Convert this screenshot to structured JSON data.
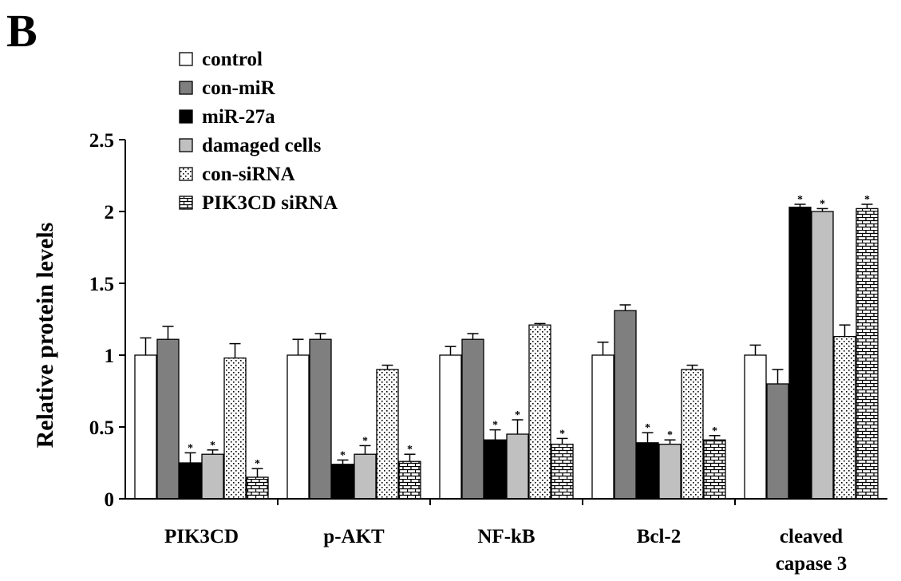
{
  "panel_label": "B",
  "chart_data": {
    "type": "bar",
    "title": "",
    "xlabel": "",
    "ylabel": "Relative protein levels",
    "ylim": [
      0,
      2.5
    ],
    "yticks": [
      "0",
      "0.5",
      "1",
      "1.5",
      "2",
      "2.5"
    ],
    "categories": [
      [
        "PIK3CD"
      ],
      [
        "p-AKT"
      ],
      [
        "NF-kB"
      ],
      [
        "Bcl-2"
      ],
      [
        "cleaved",
        "capase 3"
      ]
    ],
    "legend_position": "top-left",
    "grid": false,
    "series": [
      {
        "name": "control",
        "fill": "white",
        "values": [
          1.0,
          1.0,
          1.0,
          1.0,
          1.0
        ],
        "errors": [
          0.12,
          0.11,
          0.06,
          0.09,
          0.07
        ],
        "sig": [
          false,
          false,
          false,
          false,
          false
        ]
      },
      {
        "name": "con-miR",
        "fill": "darkgray",
        "values": [
          1.11,
          1.11,
          1.11,
          1.31,
          0.8
        ],
        "errors": [
          0.09,
          0.04,
          0.04,
          0.04,
          0.1
        ],
        "sig": [
          false,
          false,
          false,
          false,
          false
        ]
      },
      {
        "name": "miR-27a",
        "fill": "black",
        "values": [
          0.25,
          0.24,
          0.41,
          0.39,
          2.03
        ],
        "errors": [
          0.07,
          0.03,
          0.07,
          0.07,
          0.02
        ],
        "sig": [
          true,
          true,
          true,
          true,
          true
        ]
      },
      {
        "name": "damaged cells",
        "fill": "lightgray",
        "values": [
          0.31,
          0.31,
          0.45,
          0.38,
          2.0
        ],
        "errors": [
          0.03,
          0.06,
          0.1,
          0.03,
          0.02
        ],
        "sig": [
          true,
          true,
          true,
          true,
          true
        ]
      },
      {
        "name": "con-siRNA",
        "fill": "dots",
        "values": [
          0.98,
          0.9,
          1.21,
          0.9,
          1.13
        ],
        "errors": [
          0.1,
          0.03,
          0.01,
          0.03,
          0.08
        ],
        "sig": [
          false,
          false,
          false,
          false,
          false
        ]
      },
      {
        "name": "PIK3CD siRNA",
        "fill": "bricks",
        "values": [
          0.15,
          0.26,
          0.38,
          0.41,
          2.02
        ],
        "errors": [
          0.06,
          0.05,
          0.04,
          0.03,
          0.03
        ],
        "sig": [
          true,
          true,
          true,
          true,
          true
        ]
      }
    ],
    "significance_marker": "*"
  }
}
